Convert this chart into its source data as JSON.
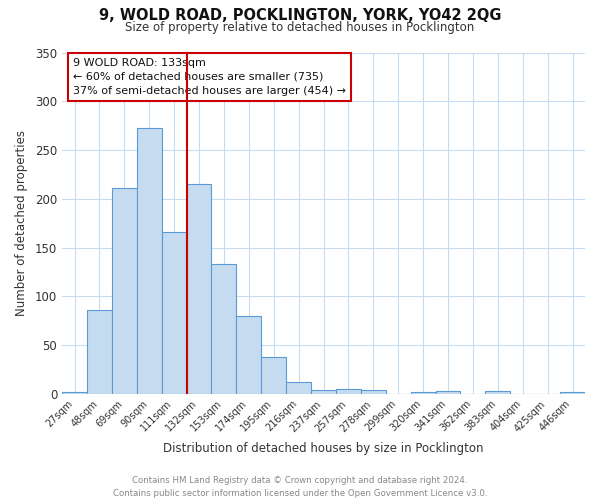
{
  "title": "9, WOLD ROAD, POCKLINGTON, YORK, YO42 2QG",
  "subtitle": "Size of property relative to detached houses in Pocklington",
  "xlabel": "Distribution of detached houses by size in Pocklington",
  "ylabel": "Number of detached properties",
  "bar_labels": [
    "27sqm",
    "48sqm",
    "69sqm",
    "90sqm",
    "111sqm",
    "132sqm",
    "153sqm",
    "174sqm",
    "195sqm",
    "216sqm",
    "237sqm",
    "257sqm",
    "278sqm",
    "299sqm",
    "320sqm",
    "341sqm",
    "362sqm",
    "383sqm",
    "404sqm",
    "425sqm",
    "446sqm"
  ],
  "bar_values": [
    2,
    86,
    211,
    273,
    166,
    215,
    133,
    80,
    38,
    12,
    4,
    5,
    4,
    0,
    2,
    3,
    0,
    3,
    0,
    0,
    2
  ],
  "bar_color": "#C5DCF0",
  "bar_edge_color": "#5B9BD5",
  "vline_x_index": 5,
  "vline_color": "#CC0000",
  "ylim": [
    0,
    350
  ],
  "yticks": [
    0,
    50,
    100,
    150,
    200,
    250,
    300,
    350
  ],
  "annotation_title": "9 WOLD ROAD: 133sqm",
  "annotation_line1": "← 60% of detached houses are smaller (735)",
  "annotation_line2": "37% of semi-detached houses are larger (454) →",
  "annotation_box_color": "#ffffff",
  "annotation_box_edge": "#CC0000",
  "footer_line1": "Contains HM Land Registry data © Crown copyright and database right 2024.",
  "footer_line2": "Contains public sector information licensed under the Open Government Licence v3.0.",
  "background_color": "#ffffff",
  "grid_color": "#C5DCF0"
}
